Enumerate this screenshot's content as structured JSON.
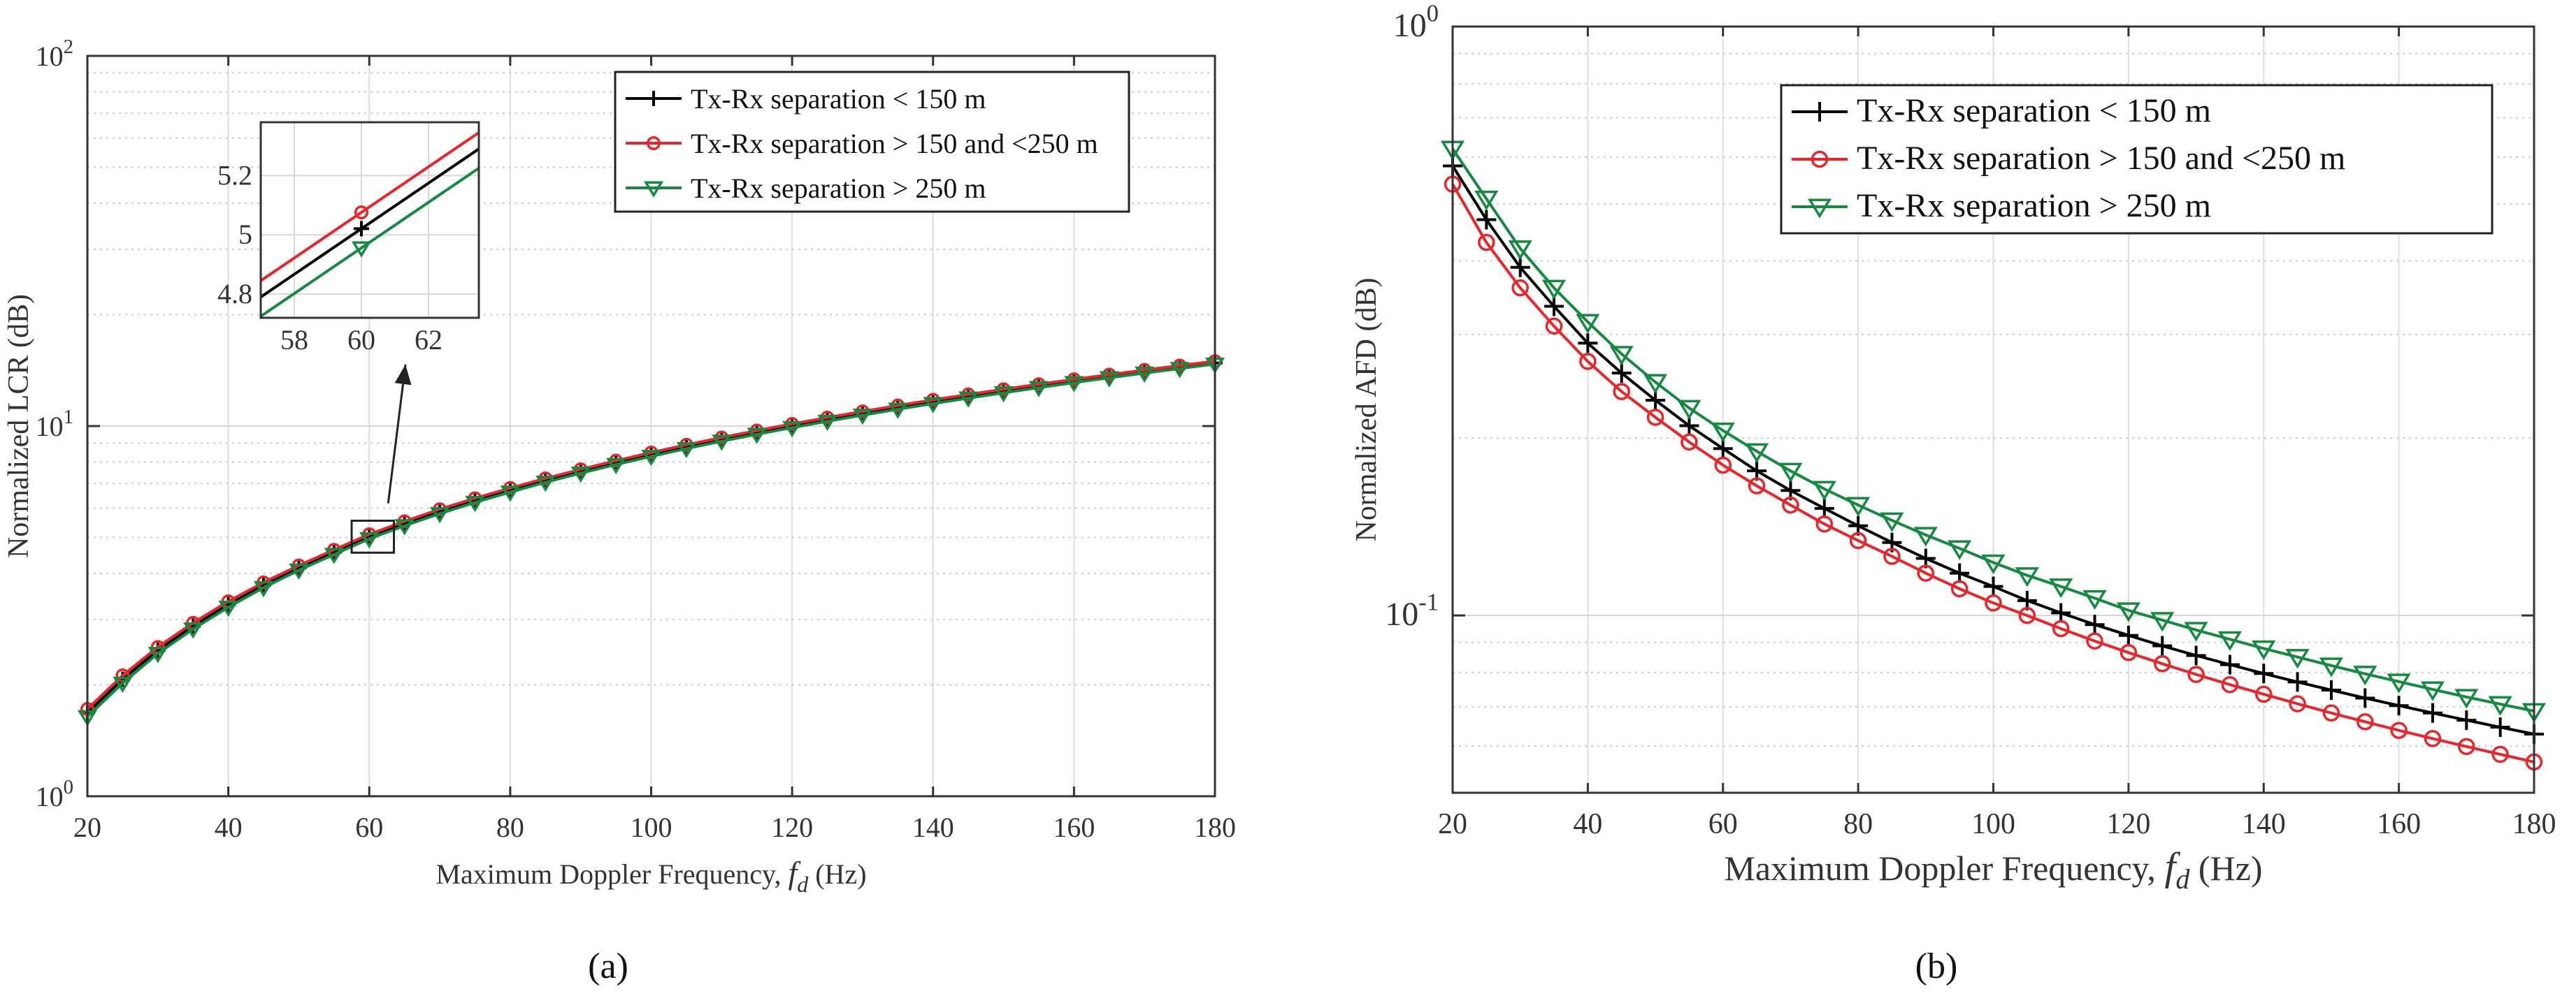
{
  "chart_data": [
    {
      "type": "line",
      "panel_label": "(a)",
      "xlabel_prefix": "Maximum Doppler Frequency, ",
      "xlabel_var": "f",
      "xlabel_sub": "d",
      "xlabel_unit": " (Hz)",
      "ylabel": "Normalized LCR (dB)",
      "xlim": [
        20,
        180
      ],
      "ylim": [
        1,
        100
      ],
      "yscale": "log",
      "grid": true,
      "legend_position": "top-right",
      "x_ticks": [
        "20",
        "40",
        "60",
        "80",
        "100",
        "120",
        "140",
        "160",
        "180"
      ],
      "y_ticks": [
        {
          "base": "10",
          "exp": "0"
        },
        {
          "base": "10",
          "exp": "1"
        },
        {
          "base": "10",
          "exp": "2"
        }
      ],
      "x": [
        20,
        25,
        30,
        35,
        40,
        45,
        50,
        55,
        60,
        65,
        70,
        75,
        80,
        85,
        90,
        95,
        100,
        105,
        110,
        115,
        120,
        125,
        130,
        135,
        140,
        145,
        150,
        155,
        160,
        165,
        170,
        175,
        180
      ],
      "series": [
        {
          "name": "Tx-Rx separation < 150 m",
          "color": "#000000",
          "marker": "plus",
          "values": [
            1.68,
            2.07,
            2.48,
            2.88,
            3.3,
            3.72,
            4.14,
            4.56,
            5.05,
            5.46,
            5.88,
            6.3,
            6.71,
            7.13,
            7.55,
            7.96,
            8.37,
            8.78,
            9.19,
            9.6,
            10.0,
            10.4,
            10.8,
            11.2,
            11.6,
            12.0,
            12.4,
            12.8,
            13.2,
            13.6,
            14.0,
            14.4,
            14.8
          ]
        },
        {
          "name": "Tx-Rx separation > 150 and <250 m",
          "color": "#e8262a",
          "marker": "circle",
          "values": [
            1.72,
            2.12,
            2.53,
            2.94,
            3.36,
            3.78,
            4.2,
            4.63,
            5.1,
            5.53,
            5.96,
            6.38,
            6.8,
            7.22,
            7.64,
            8.06,
            8.48,
            8.9,
            9.31,
            9.72,
            10.13,
            10.54,
            10.95,
            11.36,
            11.77,
            12.17,
            12.57,
            12.97,
            13.37,
            13.77,
            14.17,
            14.57,
            14.97
          ]
        },
        {
          "name": "Tx-Rx separation > 250 m",
          "color": "#15893f",
          "marker": "triangle-down",
          "values": [
            1.64,
            2.02,
            2.43,
            2.83,
            3.24,
            3.66,
            4.08,
            4.5,
            4.96,
            5.38,
            5.8,
            6.22,
            6.63,
            7.05,
            7.46,
            7.87,
            8.28,
            8.69,
            9.1,
            9.5,
            9.9,
            10.3,
            10.7,
            11.1,
            11.5,
            11.9,
            12.3,
            12.7,
            13.1,
            13.5,
            13.9,
            14.3,
            14.7
          ]
        }
      ],
      "inset": {
        "xlim": [
          57,
          63.5
        ],
        "ylim": [
          4.72,
          5.38
        ],
        "x_ticks": [
          "58",
          "60",
          "62"
        ],
        "y_ticks": [
          "4.8",
          "5",
          "5.2"
        ],
        "x": [
          57,
          63.5
        ],
        "series": [
          {
            "name": "Tx-Rx separation < 150 m",
            "values": [
              4.79,
              5.29
            ]
          },
          {
            "name": "Tx-Rx separation > 150 and <250 m",
            "values": [
              4.845,
              5.345
            ]
          },
          {
            "name": "Tx-Rx separation > 250 m",
            "values": [
              4.725,
              5.225
            ]
          }
        ],
        "marker_x": 60
      }
    },
    {
      "type": "line",
      "panel_label": "(b)",
      "xlabel_prefix": "Maximum Doppler Frequency, ",
      "xlabel_var": "f",
      "xlabel_sub": "d",
      "xlabel_unit": " (Hz)",
      "ylabel": "Normalized AFD (dB)",
      "xlim": [
        20,
        180
      ],
      "ylim": [
        0.05,
        1
      ],
      "yscale": "log",
      "grid": true,
      "legend_position": "top-right",
      "x_ticks": [
        "20",
        "40",
        "60",
        "80",
        "100",
        "120",
        "140",
        "160",
        "180"
      ],
      "y_ticks": [
        {
          "base": "10",
          "exp": "-1"
        },
        {
          "base": "10",
          "exp": "0"
        }
      ],
      "x": [
        20,
        25,
        30,
        35,
        40,
        45,
        50,
        55,
        60,
        65,
        70,
        75,
        80,
        85,
        90,
        95,
        100,
        105,
        110,
        115,
        120,
        125,
        130,
        135,
        140,
        145,
        150,
        155,
        160,
        165,
        170,
        175,
        180
      ],
      "series": [
        {
          "name": "Tx-Rx separation < 150 m",
          "color": "#000000",
          "marker": "plus",
          "values": [
            0.58,
            0.47,
            0.39,
            0.335,
            0.29,
            0.258,
            0.232,
            0.21,
            0.192,
            0.176,
            0.163,
            0.152,
            0.142,
            0.133,
            0.125,
            0.118,
            0.112,
            0.106,
            0.101,
            0.0965,
            0.0925,
            0.0888,
            0.0855,
            0.0825,
            0.0797,
            0.0771,
            0.0747,
            0.0724,
            0.0703,
            0.0683,
            0.0664,
            0.0646,
            0.0629
          ]
        },
        {
          "name": "Tx-Rx separation > 150 and <250 m",
          "color": "#e8262a",
          "marker": "circle",
          "values": [
            0.54,
            0.43,
            0.36,
            0.31,
            0.27,
            0.24,
            0.217,
            0.197,
            0.18,
            0.166,
            0.154,
            0.143,
            0.134,
            0.126,
            0.118,
            0.111,
            0.105,
            0.1,
            0.095,
            0.0905,
            0.0865,
            0.0828,
            0.0794,
            0.0763,
            0.0735,
            0.0708,
            0.0683,
            0.066,
            0.0638,
            0.0618,
            0.0599,
            0.0581,
            0.0564
          ]
        },
        {
          "name": "Tx-Rx separation > 250 m",
          "color": "#15893f",
          "marker": "triangle-down",
          "values": [
            0.62,
            0.51,
            0.42,
            0.36,
            0.315,
            0.278,
            0.249,
            0.225,
            0.206,
            0.19,
            0.176,
            0.164,
            0.154,
            0.145,
            0.137,
            0.13,
            0.123,
            0.117,
            0.112,
            0.107,
            0.102,
            0.0982,
            0.0945,
            0.0911,
            0.0879,
            0.085,
            0.0822,
            0.0796,
            0.0772,
            0.0749,
            0.0727,
            0.0707,
            0.0688
          ]
        }
      ]
    }
  ]
}
